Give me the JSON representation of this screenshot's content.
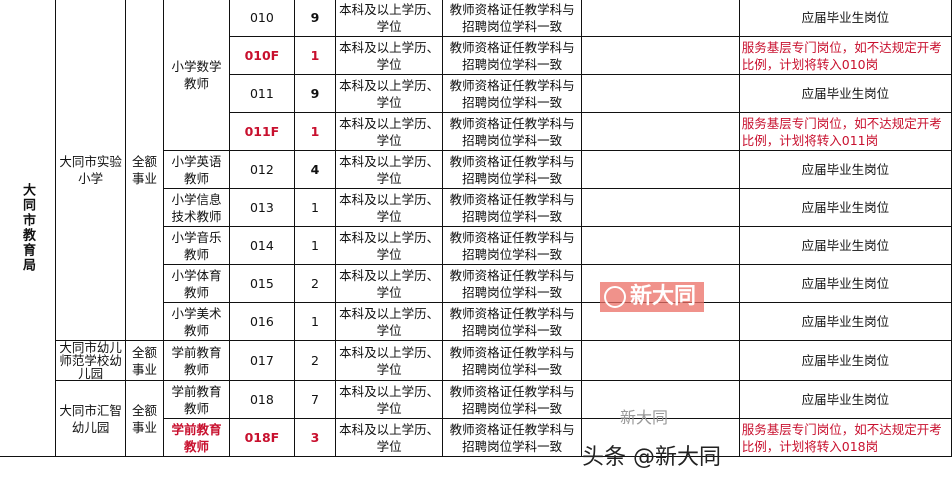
{
  "department": "大同市教育局",
  "rows": [
    {
      "code": "010",
      "count": "9",
      "edu": "本科及以上学历、学位",
      "major": "教师资格证任教学科与招聘岗位学科一致",
      "note": "应届毕业生岗位"
    },
    {
      "code": "010F",
      "count": "1",
      "edu": "本科及以上学历、学位",
      "major": "教师资格证任教学科与招聘岗位学科一致",
      "note": "服务基层专门岗位，如不达规定开考比例，计划将转入010岗"
    },
    {
      "code": "011",
      "count": "9",
      "edu": "本科及以上学历、学位",
      "major": "教师资格证任教学科与招聘岗位学科一致",
      "note": "应届毕业生岗位"
    },
    {
      "code": "011F",
      "count": "1",
      "edu": "本科及以上学历、学位",
      "major": "教师资格证任教学科与招聘岗位学科一致",
      "note": "服务基层专门岗位，如不达规定开考比例，计划将转入011岗"
    },
    {
      "code": "012",
      "count": "4",
      "edu": "本科及以上学历、学位",
      "major": "教师资格证任教学科与招聘岗位学科一致",
      "note": "应届毕业生岗位"
    },
    {
      "code": "013",
      "count": "1",
      "edu": "本科及以上学历、学位",
      "major": "教师资格证任教学科与招聘岗位学科一致",
      "note": "应届毕业生岗位"
    },
    {
      "code": "014",
      "count": "1",
      "edu": "本科及以上学历、学位",
      "major": "教师资格证任教学科与招聘岗位学科一致",
      "note": "应届毕业生岗位"
    },
    {
      "code": "015",
      "count": "2",
      "edu": "本科及以上学历、学位",
      "major": "教师资格证任教学科与招聘岗位学科一致",
      "note": "应届毕业生岗位"
    },
    {
      "code": "016",
      "count": "1",
      "edu": "本科及以上学历、学位",
      "major": "教师资格证任教学科与招聘岗位学科一致",
      "note": "应届毕业生岗位"
    },
    {
      "code": "017",
      "count": "2",
      "edu": "本科及以上学历、学位",
      "major": "教师资格证任教学科与招聘岗位学科一致",
      "note": "应届毕业生岗位"
    },
    {
      "code": "018",
      "count": "7",
      "edu": "本科及以上学历、学位",
      "major": "教师资格证任教学科与招聘岗位学科一致",
      "note": "应届毕业生岗位"
    },
    {
      "code": "018F",
      "count": "3",
      "edu": "本科及以上学历、学位",
      "major": "教师资格证任教学科与招聘岗位学科一致",
      "note": "服务基层专门岗位，如不达规定开考比例，计划将转入018岗"
    }
  ],
  "units": [
    "大同市实验小学",
    "大同市幼儿师范学校幼儿园",
    "大同市汇智幼儿园"
  ],
  "funding": "全额事业",
  "positions": [
    "小学数学教师",
    "小学英语教师",
    "小学信息技术教师",
    "小学音乐教师",
    "小学体育教师",
    "小学美术教师",
    "学前教育教师",
    "学前教育教师",
    "学前教育教师"
  ],
  "watermarks": {
    "badge": "新大同",
    "footer": "头条 @新大同",
    "footer_small": "新大同"
  },
  "colors": {
    "special": "#c8102e"
  }
}
